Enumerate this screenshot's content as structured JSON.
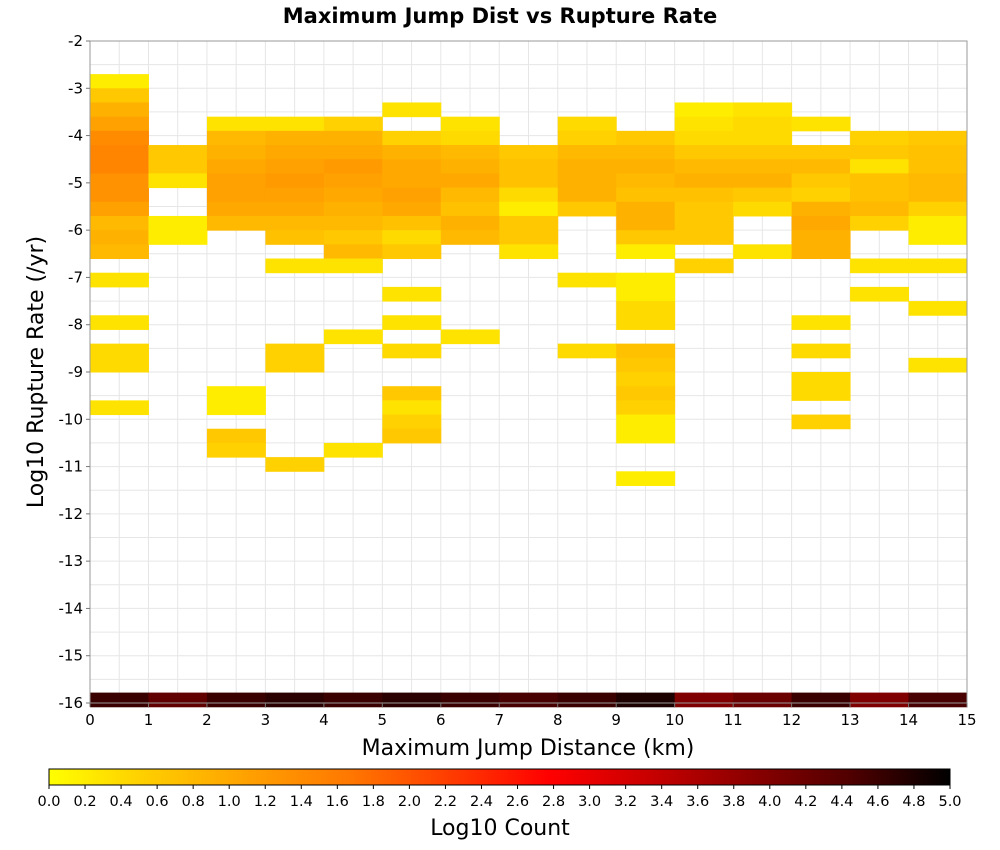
{
  "chart_data": {
    "type": "heatmap",
    "title": "Maximum Jump Dist vs Rupture Rate",
    "xlabel": "Maximum Jump Distance (km)",
    "ylabel": "Log10 Rupture Rate (/yr)",
    "xlim": [
      0,
      15
    ],
    "ylim": [
      -16,
      -2
    ],
    "x_ticks": [
      "0",
      "1",
      "2",
      "3",
      "4",
      "5",
      "6",
      "7",
      "8",
      "9",
      "10",
      "11",
      "12",
      "13",
      "14",
      "15"
    ],
    "y_ticks": [
      "-2",
      "-3",
      "-4",
      "-5",
      "-6",
      "-7",
      "-8",
      "-9",
      "-10",
      "-11",
      "-12",
      "-13",
      "-14",
      "-15",
      "-16"
    ],
    "x_bin_width": 1,
    "y_bin_height": 0.3,
    "grid": true,
    "colorbar": {
      "label": "Log10 Count",
      "range": [
        0,
        5
      ],
      "ticks": [
        "0.0",
        "0.2",
        "0.4",
        "0.6",
        "0.8",
        "1.0",
        "1.2",
        "1.4",
        "1.6",
        "1.8",
        "2.0",
        "2.2",
        "2.4",
        "2.6",
        "2.8",
        "3.0",
        "3.2",
        "3.4",
        "3.6",
        "3.8",
        "4.0",
        "4.2",
        "4.4",
        "4.6",
        "4.8",
        "5.0"
      ],
      "colors": [
        "#ffff00",
        "#ffcc00",
        "#ffa000",
        "#ff7800",
        "#ff3c00",
        "#ff0000",
        "#c80000",
        "#8c0000",
        "#500000",
        "#000000"
      ],
      "placement": "bottom"
    },
    "cells": [
      {
        "x": 0,
        "y": -2.85,
        "v": 0.2
      },
      {
        "x": 0,
        "y": -3.15,
        "v": 0.6
      },
      {
        "x": 0,
        "y": -3.45,
        "v": 0.9
      },
      {
        "x": 0,
        "y": -3.75,
        "v": 1.1
      },
      {
        "x": 0,
        "y": -4.05,
        "v": 1.4
      },
      {
        "x": 0,
        "y": -4.35,
        "v": 1.5
      },
      {
        "x": 0,
        "y": -4.65,
        "v": 1.5
      },
      {
        "x": 0,
        "y": -4.95,
        "v": 1.3
      },
      {
        "x": 0,
        "y": -5.25,
        "v": 1.3
      },
      {
        "x": 0,
        "y": -5.55,
        "v": 1.1
      },
      {
        "x": 0,
        "y": -5.85,
        "v": 0.8
      },
      {
        "x": 0,
        "y": -6.15,
        "v": 0.9
      },
      {
        "x": 0,
        "y": -6.45,
        "v": 0.8
      },
      {
        "x": 0,
        "y": -7.05,
        "v": 0.3
      },
      {
        "x": 0,
        "y": -7.95,
        "v": 0.3
      },
      {
        "x": 0,
        "y": -8.55,
        "v": 0.4
      },
      {
        "x": 0,
        "y": -8.85,
        "v": 0.4
      },
      {
        "x": 0,
        "y": -9.75,
        "v": 0.3
      },
      {
        "x": 1,
        "y": -4.35,
        "v": 0.6
      },
      {
        "x": 1,
        "y": -4.65,
        "v": 0.6
      },
      {
        "x": 1,
        "y": -4.95,
        "v": 0.3
      },
      {
        "x": 1,
        "y": -5.85,
        "v": 0.2
      },
      {
        "x": 1,
        "y": -6.15,
        "v": 0.2
      },
      {
        "x": 2,
        "y": -3.75,
        "v": 0.3
      },
      {
        "x": 2,
        "y": -4.05,
        "v": 0.8
      },
      {
        "x": 2,
        "y": -4.35,
        "v": 0.9
      },
      {
        "x": 2,
        "y": -4.65,
        "v": 1.0
      },
      {
        "x": 2,
        "y": -4.95,
        "v": 1.1
      },
      {
        "x": 2,
        "y": -5.25,
        "v": 1.1
      },
      {
        "x": 2,
        "y": -5.55,
        "v": 1.0
      },
      {
        "x": 2,
        "y": -5.85,
        "v": 0.8
      },
      {
        "x": 2,
        "y": -9.45,
        "v": 0.2
      },
      {
        "x": 2,
        "y": -9.75,
        "v": 0.2
      },
      {
        "x": 2,
        "y": -10.35,
        "v": 0.6
      },
      {
        "x": 2,
        "y": -10.65,
        "v": 0.5
      },
      {
        "x": 3,
        "y": -3.75,
        "v": 0.3
      },
      {
        "x": 3,
        "y": -4.05,
        "v": 0.9
      },
      {
        "x": 3,
        "y": -4.35,
        "v": 1.0
      },
      {
        "x": 3,
        "y": -4.65,
        "v": 1.1
      },
      {
        "x": 3,
        "y": -4.95,
        "v": 1.2
      },
      {
        "x": 3,
        "y": -5.25,
        "v": 1.1
      },
      {
        "x": 3,
        "y": -5.55,
        "v": 1.0
      },
      {
        "x": 3,
        "y": -5.85,
        "v": 0.8
      },
      {
        "x": 3,
        "y": -6.15,
        "v": 0.7
      },
      {
        "x": 3,
        "y": -6.75,
        "v": 0.3
      },
      {
        "x": 3,
        "y": -8.55,
        "v": 0.5
      },
      {
        "x": 3,
        "y": -8.85,
        "v": 0.5
      },
      {
        "x": 3,
        "y": -10.95,
        "v": 0.5
      },
      {
        "x": 4,
        "y": -3.75,
        "v": 0.5
      },
      {
        "x": 4,
        "y": -4.05,
        "v": 0.9
      },
      {
        "x": 4,
        "y": -4.35,
        "v": 1.0
      },
      {
        "x": 4,
        "y": -4.65,
        "v": 1.2
      },
      {
        "x": 4,
        "y": -4.95,
        "v": 1.1
      },
      {
        "x": 4,
        "y": -5.25,
        "v": 1.0
      },
      {
        "x": 4,
        "y": -5.55,
        "v": 0.9
      },
      {
        "x": 4,
        "y": -5.85,
        "v": 0.8
      },
      {
        "x": 4,
        "y": -6.15,
        "v": 0.6
      },
      {
        "x": 4,
        "y": -6.45,
        "v": 0.8
      },
      {
        "x": 4,
        "y": -6.75,
        "v": 0.3
      },
      {
        "x": 4,
        "y": -8.25,
        "v": 0.3
      },
      {
        "x": 4,
        "y": -10.65,
        "v": 0.3
      },
      {
        "x": 5,
        "y": -3.45,
        "v": 0.3
      },
      {
        "x": 5,
        "y": -4.05,
        "v": 0.5
      },
      {
        "x": 5,
        "y": -4.35,
        "v": 0.9
      },
      {
        "x": 5,
        "y": -4.65,
        "v": 1.0
      },
      {
        "x": 5,
        "y": -4.95,
        "v": 1.0
      },
      {
        "x": 5,
        "y": -5.25,
        "v": 1.1
      },
      {
        "x": 5,
        "y": -5.55,
        "v": 1.0
      },
      {
        "x": 5,
        "y": -5.85,
        "v": 0.7
      },
      {
        "x": 5,
        "y": -6.15,
        "v": 0.4
      },
      {
        "x": 5,
        "y": -6.45,
        "v": 0.6
      },
      {
        "x": 5,
        "y": -7.35,
        "v": 0.3
      },
      {
        "x": 5,
        "y": -7.95,
        "v": 0.3
      },
      {
        "x": 5,
        "y": -8.55,
        "v": 0.4
      },
      {
        "x": 5,
        "y": -9.45,
        "v": 0.6
      },
      {
        "x": 5,
        "y": -9.75,
        "v": 0.3
      },
      {
        "x": 5,
        "y": -10.05,
        "v": 0.5
      },
      {
        "x": 5,
        "y": -10.35,
        "v": 0.6
      },
      {
        "x": 6,
        "y": -3.75,
        "v": 0.3
      },
      {
        "x": 6,
        "y": -4.05,
        "v": 0.4
      },
      {
        "x": 6,
        "y": -4.35,
        "v": 0.8
      },
      {
        "x": 6,
        "y": -4.65,
        "v": 0.9
      },
      {
        "x": 6,
        "y": -4.95,
        "v": 1.0
      },
      {
        "x": 6,
        "y": -5.25,
        "v": 0.8
      },
      {
        "x": 6,
        "y": -5.55,
        "v": 0.7
      },
      {
        "x": 6,
        "y": -5.85,
        "v": 0.9
      },
      {
        "x": 6,
        "y": -6.15,
        "v": 0.8
      },
      {
        "x": 6,
        "y": -8.25,
        "v": 0.3
      },
      {
        "x": 7,
        "y": -4.35,
        "v": 0.6
      },
      {
        "x": 7,
        "y": -4.65,
        "v": 0.7
      },
      {
        "x": 7,
        "y": -4.95,
        "v": 0.7
      },
      {
        "x": 7,
        "y": -5.25,
        "v": 0.4
      },
      {
        "x": 7,
        "y": -5.55,
        "v": 0.2
      },
      {
        "x": 7,
        "y": -5.85,
        "v": 0.6
      },
      {
        "x": 7,
        "y": -6.15,
        "v": 0.6
      },
      {
        "x": 7,
        "y": -6.45,
        "v": 0.3
      },
      {
        "x": 8,
        "y": -3.75,
        "v": 0.4
      },
      {
        "x": 8,
        "y": -4.05,
        "v": 0.5
      },
      {
        "x": 8,
        "y": -4.35,
        "v": 0.8
      },
      {
        "x": 8,
        "y": -4.65,
        "v": 0.9
      },
      {
        "x": 8,
        "y": -4.95,
        "v": 0.9
      },
      {
        "x": 8,
        "y": -5.25,
        "v": 0.9
      },
      {
        "x": 8,
        "y": -5.55,
        "v": 0.6
      },
      {
        "x": 8,
        "y": -7.05,
        "v": 0.3
      },
      {
        "x": 8,
        "y": -8.55,
        "v": 0.4
      },
      {
        "x": 9,
        "y": -4.05,
        "v": 0.6
      },
      {
        "x": 9,
        "y": -4.35,
        "v": 0.8
      },
      {
        "x": 9,
        "y": -4.65,
        "v": 0.9
      },
      {
        "x": 9,
        "y": -4.95,
        "v": 0.8
      },
      {
        "x": 9,
        "y": -5.25,
        "v": 0.7
      },
      {
        "x": 9,
        "y": -5.55,
        "v": 0.9
      },
      {
        "x": 9,
        "y": -5.85,
        "v": 0.9
      },
      {
        "x": 9,
        "y": -6.15,
        "v": 0.6
      },
      {
        "x": 9,
        "y": -6.45,
        "v": 0.2
      },
      {
        "x": 9,
        "y": -7.05,
        "v": 0.2
      },
      {
        "x": 9,
        "y": -7.35,
        "v": 0.2
      },
      {
        "x": 9,
        "y": -7.65,
        "v": 0.4
      },
      {
        "x": 9,
        "y": -7.95,
        "v": 0.4
      },
      {
        "x": 9,
        "y": -8.55,
        "v": 0.7
      },
      {
        "x": 9,
        "y": -8.85,
        "v": 0.6
      },
      {
        "x": 9,
        "y": -9.15,
        "v": 0.5
      },
      {
        "x": 9,
        "y": -9.45,
        "v": 0.6
      },
      {
        "x": 9,
        "y": -9.75,
        "v": 0.5
      },
      {
        "x": 9,
        "y": -10.05,
        "v": 0.2
      },
      {
        "x": 9,
        "y": -10.35,
        "v": 0.2
      },
      {
        "x": 9,
        "y": -11.25,
        "v": 0.2
      },
      {
        "x": 10,
        "y": -3.45,
        "v": 0.2
      },
      {
        "x": 10,
        "y": -3.75,
        "v": 0.3
      },
      {
        "x": 10,
        "y": -4.05,
        "v": 0.4
      },
      {
        "x": 10,
        "y": -4.35,
        "v": 0.6
      },
      {
        "x": 10,
        "y": -4.65,
        "v": 0.8
      },
      {
        "x": 10,
        "y": -4.95,
        "v": 0.9
      },
      {
        "x": 10,
        "y": -5.25,
        "v": 0.7
      },
      {
        "x": 10,
        "y": -5.55,
        "v": 0.6
      },
      {
        "x": 10,
        "y": -5.85,
        "v": 0.6
      },
      {
        "x": 10,
        "y": -6.15,
        "v": 0.6
      },
      {
        "x": 10,
        "y": -6.75,
        "v": 0.5
      },
      {
        "x": 11,
        "y": -3.45,
        "v": 0.3
      },
      {
        "x": 11,
        "y": -3.75,
        "v": 0.4
      },
      {
        "x": 11,
        "y": -4.05,
        "v": 0.4
      },
      {
        "x": 11,
        "y": -4.35,
        "v": 0.6
      },
      {
        "x": 11,
        "y": -4.65,
        "v": 0.8
      },
      {
        "x": 11,
        "y": -4.95,
        "v": 0.9
      },
      {
        "x": 11,
        "y": -5.25,
        "v": 0.6
      },
      {
        "x": 11,
        "y": -5.55,
        "v": 0.4
      },
      {
        "x": 11,
        "y": -6.45,
        "v": 0.3
      },
      {
        "x": 12,
        "y": -3.75,
        "v": 0.3
      },
      {
        "x": 12,
        "y": -4.35,
        "v": 0.6
      },
      {
        "x": 12,
        "y": -4.65,
        "v": 0.8
      },
      {
        "x": 12,
        "y": -4.95,
        "v": 0.6
      },
      {
        "x": 12,
        "y": -5.25,
        "v": 0.5
      },
      {
        "x": 12,
        "y": -5.55,
        "v": 0.9
      },
      {
        "x": 12,
        "y": -5.85,
        "v": 1.0
      },
      {
        "x": 12,
        "y": -6.15,
        "v": 0.9
      },
      {
        "x": 12,
        "y": -6.45,
        "v": 0.9
      },
      {
        "x": 12,
        "y": -7.95,
        "v": 0.3
      },
      {
        "x": 12,
        "y": -8.55,
        "v": 0.4
      },
      {
        "x": 12,
        "y": -9.15,
        "v": 0.4
      },
      {
        "x": 12,
        "y": -9.45,
        "v": 0.4
      },
      {
        "x": 12,
        "y": -10.05,
        "v": 0.5
      },
      {
        "x": 13,
        "y": -4.05,
        "v": 0.5
      },
      {
        "x": 13,
        "y": -4.35,
        "v": 0.6
      },
      {
        "x": 13,
        "y": -4.65,
        "v": 0.3
      },
      {
        "x": 13,
        "y": -4.95,
        "v": 0.7
      },
      {
        "x": 13,
        "y": -5.25,
        "v": 0.7
      },
      {
        "x": 13,
        "y": -5.55,
        "v": 0.8
      },
      {
        "x": 13,
        "y": -5.85,
        "v": 0.5
      },
      {
        "x": 13,
        "y": -6.75,
        "v": 0.3
      },
      {
        "x": 13,
        "y": -7.35,
        "v": 0.3
      },
      {
        "x": 14,
        "y": -4.05,
        "v": 0.6
      },
      {
        "x": 14,
        "y": -4.35,
        "v": 0.7
      },
      {
        "x": 14,
        "y": -4.65,
        "v": 0.7
      },
      {
        "x": 14,
        "y": -4.95,
        "v": 0.8
      },
      {
        "x": 14,
        "y": -5.25,
        "v": 0.8
      },
      {
        "x": 14,
        "y": -5.55,
        "v": 0.5
      },
      {
        "x": 14,
        "y": -5.85,
        "v": 0.2
      },
      {
        "x": 14,
        "y": -6.15,
        "v": 0.2
      },
      {
        "x": 14,
        "y": -6.75,
        "v": 0.3
      },
      {
        "x": 14,
        "y": -7.65,
        "v": 0.3
      },
      {
        "x": 14,
        "y": -8.85,
        "v": 0.3
      },
      {
        "x": 0,
        "y": -15.93,
        "v": 4.6
      },
      {
        "x": 1,
        "y": -15.93,
        "v": 4.3
      },
      {
        "x": 2,
        "y": -15.93,
        "v": 4.6
      },
      {
        "x": 3,
        "y": -15.93,
        "v": 4.7
      },
      {
        "x": 4,
        "y": -15.93,
        "v": 4.6
      },
      {
        "x": 5,
        "y": -15.93,
        "v": 4.7
      },
      {
        "x": 6,
        "y": -15.93,
        "v": 4.6
      },
      {
        "x": 7,
        "y": -15.93,
        "v": 4.5
      },
      {
        "x": 8,
        "y": -15.93,
        "v": 4.6
      },
      {
        "x": 9,
        "y": -15.93,
        "v": 4.8
      },
      {
        "x": 10,
        "y": -15.93,
        "v": 4.0
      },
      {
        "x": 11,
        "y": -15.93,
        "v": 4.2
      },
      {
        "x": 12,
        "y": -15.93,
        "v": 4.6
      },
      {
        "x": 13,
        "y": -15.93,
        "v": 4.0
      },
      {
        "x": 14,
        "y": -15.93,
        "v": 4.5
      }
    ]
  }
}
